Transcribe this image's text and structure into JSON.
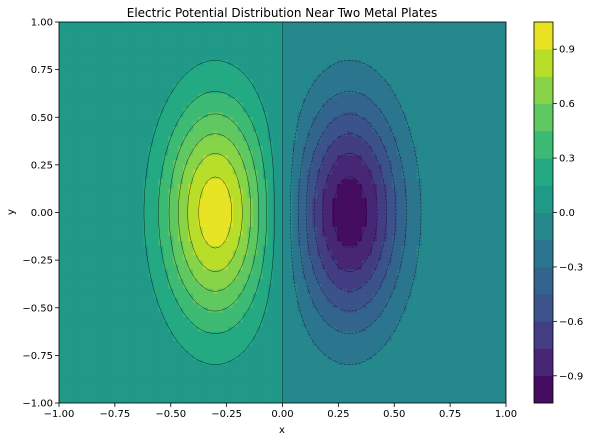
{
  "chart_data": {
    "type": "contour",
    "title": "Electric Potential Distribution Near Two Metal Plates",
    "xlabel": "x",
    "ylabel": "y",
    "xlim": [
      -1.0,
      1.0
    ],
    "ylim": [
      -1.0,
      1.0
    ],
    "x_ticks": [
      "−1.00",
      "−0.75",
      "−0.50",
      "−0.25",
      "0.00",
      "0.25",
      "0.50",
      "0.75",
      "1.00"
    ],
    "y_ticks": [
      "−1.00",
      "−0.75",
      "−0.50",
      "−0.25",
      "0.00",
      "0.25",
      "0.50",
      "0.75",
      "1.00"
    ],
    "x_tick_values": [
      -1.0,
      -0.75,
      -0.5,
      -0.25,
      0.0,
      0.25,
      0.5,
      0.75,
      1.0
    ],
    "y_tick_values": [
      -1.0,
      -0.75,
      -0.5,
      -0.25,
      0.0,
      0.25,
      0.5,
      0.75,
      1.0
    ],
    "colorbar": {
      "ticks": [
        "−0.9",
        "−0.6",
        "−0.3",
        "0.0",
        "0.3",
        "0.6",
        "0.9"
      ],
      "tick_values": [
        -0.9,
        -0.6,
        -0.3,
        0.0,
        0.3,
        0.6,
        0.9
      ],
      "range": [
        -1.05,
        1.05
      ],
      "levels": [
        -1.05,
        -0.9,
        -0.75,
        -0.6,
        -0.45,
        -0.3,
        -0.15,
        0.0,
        0.15,
        0.3,
        0.45,
        0.6,
        0.75,
        0.9,
        1.05
      ],
      "colormap": "viridis",
      "colors": [
        "#440154",
        "#482173",
        "#433e85",
        "#38598c",
        "#2d708e",
        "#25858e",
        "#1e9b8a",
        "#2ab07f",
        "#52c569",
        "#86d549",
        "#c2df23",
        "#fde725",
        "#ffe70a",
        "#fde725"
      ]
    },
    "sources": [
      {
        "name": "positive",
        "x": -0.3,
        "y": 0.0,
        "peak": 1.0
      },
      {
        "name": "negative",
        "x": 0.3,
        "y": 0.0,
        "peak": -1.0
      }
    ]
  }
}
